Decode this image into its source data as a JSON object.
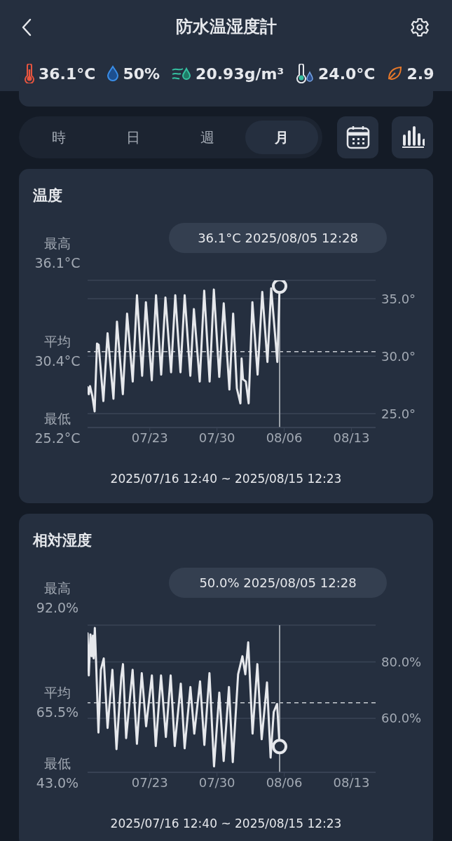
{
  "chart_data": [
    {
      "type": "other",
      "title": "防水温湿度計",
      "annotations": [
        "36.1°C",
        "50%",
        "20.93g/m³",
        "24.0°C",
        "2.9",
        "時",
        "日",
        "週",
        "月"
      ]
    },
    {
      "type": "line",
      "title": "温度",
      "xlim": [
        "2025-07-16T12:40",
        "2025-08-15T12:23"
      ],
      "xticks": [
        {
          "value": "2025-07-23",
          "label": "07/23"
        },
        {
          "value": "2025-07-30",
          "label": "07/30"
        },
        {
          "value": "2025-08-06",
          "label": "08/06"
        },
        {
          "value": "2025-08-13",
          "label": "08/13"
        }
      ],
      "ylim": [
        23.8,
        36.6
      ],
      "yticks": [
        {
          "value": 25,
          "label": "25.0°"
        },
        {
          "value": 30,
          "label": "30.0°"
        },
        {
          "value": 35,
          "label": "35.0°"
        }
      ],
      "grid": "y",
      "x": [
        "2025-07-16T12:40",
        "2025-07-16T15:40",
        "2025-07-16T18:40",
        "2025-07-17T00:40",
        "2025-07-17T06:16",
        "2025-07-17T12:10",
        "2025-07-17T16:16",
        "2025-07-18T04:04",
        "2025-07-18T14:34",
        "2025-07-19T05:16",
        "2025-07-19T14:04",
        "2025-07-20T04:46",
        "2025-07-20T15:22",
        "2025-07-21T05:28",
        "2025-07-21T16:04",
        "2025-07-22T04:58",
        "2025-07-22T14:22",
        "2025-07-23T05:04",
        "2025-07-23T15:40",
        "2025-07-24T04:34",
        "2025-07-24T15:10",
        "2025-07-25T05:16",
        "2025-07-25T15:46",
        "2025-07-26T04:46",
        "2025-07-26T15:16",
        "2025-07-27T05:22",
        "2025-07-27T14:16",
        "2025-07-28T04:52",
        "2025-07-28T16:04",
        "2025-07-29T05:34",
        "2025-07-29T16:10",
        "2025-07-30T05:40",
        "2025-07-30T16:52",
        "2025-07-31T06:58",
        "2025-07-31T16:22",
        "2025-08-01T01:40",
        "2025-08-01T10:34",
        "2025-08-01T13:28",
        "2025-08-01T17:00",
        "2025-08-02T00:04",
        "2025-08-02T07:04",
        "2025-08-02T16:28",
        "2025-08-03T05:28",
        "2025-08-03T17:10",
        "2025-08-04T06:04",
        "2025-08-04T15:28",
        "2025-08-05T06:46",
        "2025-08-05T12:28"
      ],
      "series": [
        {
          "color": "#e6e8ec",
          "values": [
            27.3,
            26.7,
            27.4,
            26.5,
            25.2,
            31.1,
            31.0,
            26.1,
            32.0,
            26.3,
            33.0,
            26.7,
            33.7,
            27.8,
            35.3,
            28.3,
            34.7,
            27.9,
            35.3,
            28.4,
            35.1,
            28.6,
            35.3,
            28.6,
            35.3,
            28.3,
            34.1,
            27.8,
            35.7,
            27.8,
            35.8,
            28.2,
            34.6,
            27.1,
            33.7,
            27.2,
            25.9,
            29.8,
            28.0,
            27.8,
            25.9,
            34.7,
            28.4,
            35.6,
            29.5,
            35.9,
            29.5,
            36.1
          ]
        }
      ],
      "ref_lines": [
        {
          "axis": "y",
          "value": 30.4,
          "label": "平均\n30.4°C",
          "line_style": "dashed",
          "color": "#c8ccd2"
        },
        {
          "axis": "x",
          "value": "2025-08-05T12:28",
          "label": null,
          "color": "#9aa0a8"
        }
      ],
      "annotations": [
        "最高\n36.1°C",
        "最低\n25.2°C",
        "2025/07/16 12:40 ~ 2025/08/15 12:23",
        "36.1°C 2025/08/05 12:28"
      ]
    },
    {
      "type": "line",
      "title": "相対湿度",
      "xlim": [
        "2025-07-16T12:40",
        "2025-08-15T12:23"
      ],
      "xticks": [
        {
          "value": "2025-07-23",
          "label": "07/23"
        },
        {
          "value": "2025-07-30",
          "label": "07/30"
        },
        {
          "value": "2025-08-06",
          "label": "08/06"
        },
        {
          "value": "2025-08-13",
          "label": "08/13"
        }
      ],
      "ylim": [
        40.9,
        93
      ],
      "yticks": [
        {
          "value": 60,
          "label": "60.0%"
        },
        {
          "value": 80,
          "label": "80.0%"
        }
      ],
      "grid": "y",
      "x": [
        "2025-07-16T12:40",
        "2025-07-16T15:40",
        "2025-07-16T19:52",
        "2025-07-16T22:52",
        "2025-07-17T01:52",
        "2025-07-17T03:40",
        "2025-07-17T06:46",
        "2025-07-17T09:46",
        "2025-07-17T15:46",
        "2025-07-17T21:46",
        "2025-07-18T05:00",
        "2025-07-18T14:34",
        "2025-07-19T02:40",
        "2025-07-19T12:52",
        "2025-07-20T00:52",
        "2025-07-20T05:04",
        "2025-07-20T12:58",
        "2025-07-21T05:10",
        "2025-07-21T15:58",
        "2025-07-22T04:04",
        "2025-07-22T14:52",
        "2025-07-23T05:22",
        "2025-07-23T14:58",
        "2025-07-24T04:10",
        "2025-07-24T16:16",
        "2025-07-25T04:16",
        "2025-07-25T14:28",
        "2025-07-26T05:34",
        "2025-07-26T15:10",
        "2025-07-27T05:34",
        "2025-07-27T15:16",
        "2025-07-28T05:40",
        "2025-07-28T16:28",
        "2025-07-29T05:10",
        "2025-07-29T16:34",
        "2025-07-30T05:46",
        "2025-07-30T16:40",
        "2025-07-31T05:52",
        "2025-07-31T15:28",
        "2025-08-01T04:46",
        "2025-08-01T15:34",
        "2025-08-01T22:46",
        "2025-08-02T06:00",
        "2025-08-02T16:52",
        "2025-08-03T04:52",
        "2025-08-03T15:40",
        "2025-08-04T04:58",
        "2025-08-04T13:58",
        "2025-08-04T21:46",
        "2025-08-05T06:10",
        "2025-08-05T12:28"
      ],
      "series": [
        {
          "color": "#e6e8ec",
          "values": [
            90.1,
            75.2,
            89.7,
            82.0,
            89.3,
            81.2,
            92.0,
            80.4,
            55.0,
            77.2,
            81.2,
            56.6,
            77.2,
            49.1,
            74.8,
            79.2,
            53.0,
            77.2,
            51.0,
            76.0,
            57.2,
            75.2,
            50.2,
            75.2,
            53.4,
            75.2,
            50.2,
            72.3,
            49.4,
            71.1,
            54.6,
            73.1,
            50.6,
            76.0,
            43.0,
            69.1,
            44.9,
            71.1,
            44.5,
            75.6,
            82.0,
            75.6,
            86.9,
            54.6,
            79.2,
            52.6,
            72.7,
            46.1,
            62.3,
            65.1,
            50.0
          ]
        }
      ],
      "ref_lines": [
        {
          "axis": "y",
          "value": 65.5,
          "label": "平均\n65.5%",
          "line_style": "dashed",
          "color": "#c8ccd2"
        },
        {
          "axis": "x",
          "value": "2025-08-05T12:28",
          "label": null,
          "color": "#9aa0a8"
        }
      ],
      "annotations": [
        "最高\n92.0%",
        "最低\n43.0%",
        "2025/07/16 12:40 ~ 2025/08/15 12:23",
        "50.0% 2025/08/05 12:28"
      ]
    }
  ]
}
